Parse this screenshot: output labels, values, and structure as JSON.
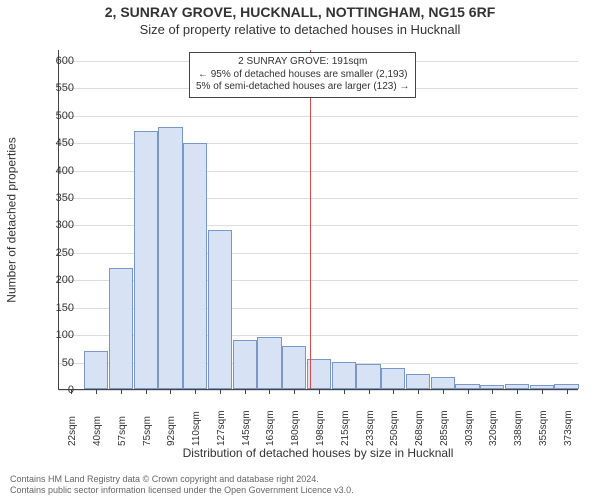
{
  "chart": {
    "type": "histogram",
    "title_line1": "2, SUNRAY GROVE, HUCKNALL, NOTTINGHAM, NG15 6RF",
    "title_line2": "Size of property relative to detached houses in Hucknall",
    "title_fontsize": 14,
    "subtitle_fontsize": 13,
    "background_color": "#ffffff",
    "grid_color": "#dddddd",
    "axis_color": "#444444",
    "bar_fill": "#d7e2f4",
    "bar_border": "#7a97c9",
    "bar_width_ratio": 0.98,
    "y": {
      "title": "Number of detached properties",
      "title_fontsize": 12,
      "min": 0,
      "max": 620,
      "tick_step": 50,
      "tick_fontsize": 11
    },
    "x": {
      "title": "Distribution of detached houses by size in Hucknall",
      "title_fontsize": 12,
      "labels": [
        "22sqm",
        "40sqm",
        "57sqm",
        "75sqm",
        "92sqm",
        "110sqm",
        "127sqm",
        "145sqm",
        "163sqm",
        "180sqm",
        "198sqm",
        "215sqm",
        "233sqm",
        "250sqm",
        "268sqm",
        "285sqm",
        "303sqm",
        "320sqm",
        "338sqm",
        "355sqm",
        "373sqm"
      ],
      "tick_fontsize": 10
    },
    "values": [
      0,
      70,
      220,
      470,
      478,
      448,
      290,
      90,
      95,
      78,
      55,
      50,
      45,
      38,
      28,
      22,
      10,
      8,
      10,
      8,
      10
    ],
    "reference": {
      "x_value_sqm": 191,
      "color": "#d94a4a",
      "lines": [
        "2 SUNRAY GROVE: 191sqm",
        "← 95% of detached houses are smaller (2,193)",
        "5% of semi-detached houses are larger (123) →"
      ],
      "box_border": "#444444",
      "box_bg": "#ffffff",
      "box_fontsize": 10
    }
  },
  "footer": {
    "line1": "Contains HM Land Registry data © Crown copyright and database right 2024.",
    "line2": "Contains public sector information licensed under the Open Government Licence v3.0.",
    "fontsize": 9,
    "color": "#666666"
  }
}
